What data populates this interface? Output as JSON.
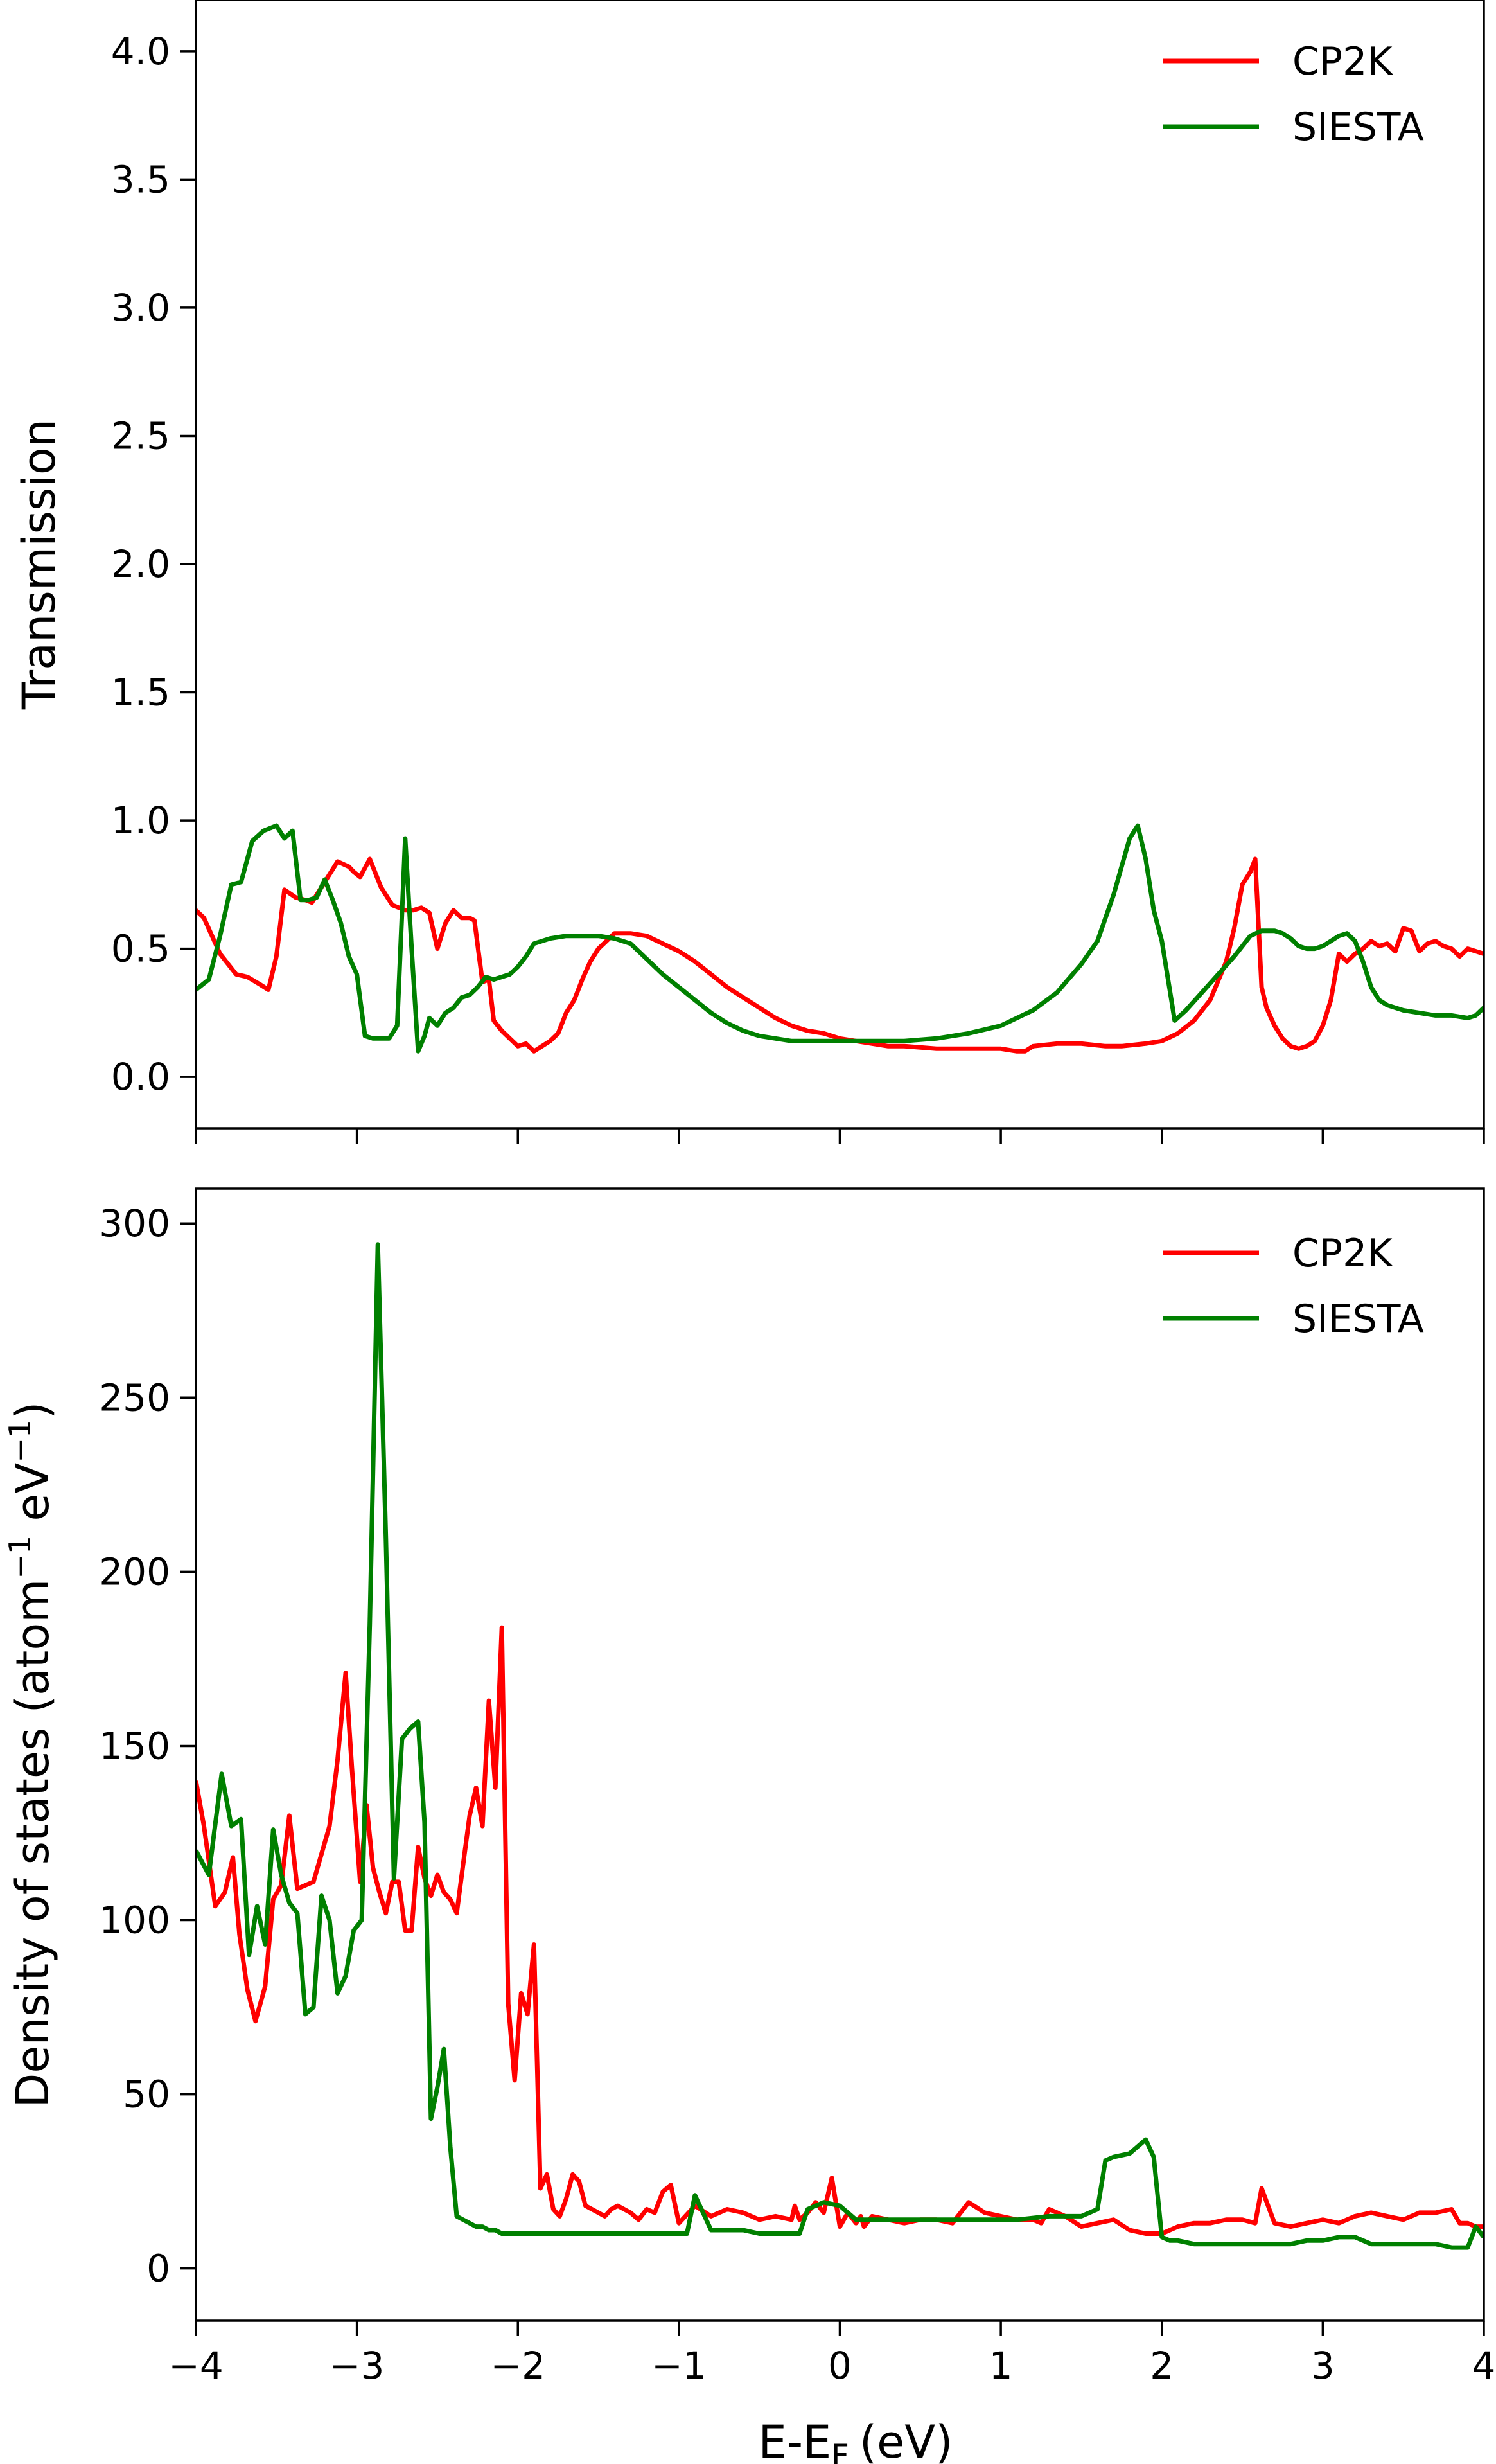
{
  "xlabel": "E-E",
  "xlabel_sub": "F",
  "xlabel_unit": "(eV)",
  "colors": {
    "CP2K": "#ff0000",
    "SIESTA": "#008000"
  },
  "chart_data": [
    {
      "type": "line",
      "ylabel": "Transmission",
      "xlim": [
        -4,
        4
      ],
      "ylim": [
        -0.2,
        4.2
      ],
      "xticks": [
        -4,
        -3,
        -2,
        -1,
        0,
        1,
        2,
        3,
        4
      ],
      "yticks": [
        0.0,
        0.5,
        1.0,
        1.5,
        2.0,
        2.5,
        3.0,
        3.5,
        4.0
      ],
      "ytick_labels": [
        "0.0",
        "0.5",
        "1.0",
        "1.5",
        "2.0",
        "2.5",
        "3.0",
        "3.5",
        "4.0"
      ],
      "legend": [
        "CP2K",
        "SIESTA"
      ],
      "legend_position": "top-right",
      "series": [
        {
          "name": "CP2K",
          "x": [
            -4.0,
            -3.95,
            -3.85,
            -3.75,
            -3.68,
            -3.6,
            -3.55,
            -3.5,
            -3.45,
            -3.38,
            -3.32,
            -3.28,
            -3.22,
            -3.18,
            -3.12,
            -3.05,
            -3.02,
            -2.98,
            -2.92,
            -2.85,
            -2.78,
            -2.7,
            -2.65,
            -2.6,
            -2.55,
            -2.5,
            -2.45,
            -2.4,
            -2.35,
            -2.3,
            -2.27,
            -2.22,
            -2.18,
            -2.15,
            -2.1,
            -2.05,
            -2.0,
            -1.95,
            -1.9,
            -1.85,
            -1.8,
            -1.75,
            -1.7,
            -1.65,
            -1.6,
            -1.55,
            -1.5,
            -1.45,
            -1.4,
            -1.35,
            -1.3,
            -1.25,
            -1.2,
            -1.1,
            -1.0,
            -0.9,
            -0.8,
            -0.7,
            -0.6,
            -0.5,
            -0.4,
            -0.3,
            -0.2,
            -0.1,
            0.0,
            0.1,
            0.2,
            0.3,
            0.4,
            0.6,
            0.8,
            1.0,
            1.1,
            1.15,
            1.2,
            1.35,
            1.5,
            1.65,
            1.7,
            1.75,
            1.9,
            2.0,
            2.1,
            2.2,
            2.3,
            2.4,
            2.45,
            2.5,
            2.55,
            2.58,
            2.62,
            2.65,
            2.7,
            2.75,
            2.8,
            2.85,
            2.9,
            2.95,
            3.0,
            3.05,
            3.1,
            3.15,
            3.2,
            3.25,
            3.3,
            3.35,
            3.4,
            3.45,
            3.5,
            3.55,
            3.6,
            3.65,
            3.7,
            3.75,
            3.8,
            3.85,
            3.9,
            3.95,
            4.0
          ],
          "y": [
            0.65,
            0.62,
            0.48,
            0.4,
            0.39,
            0.36,
            0.34,
            0.47,
            0.73,
            0.7,
            0.69,
            0.68,
            0.74,
            0.78,
            0.84,
            0.82,
            0.8,
            0.78,
            0.85,
            0.74,
            0.67,
            0.65,
            0.65,
            0.66,
            0.64,
            0.5,
            0.6,
            0.65,
            0.62,
            0.62,
            0.61,
            0.37,
            0.38,
            0.22,
            0.18,
            0.15,
            0.12,
            0.13,
            0.1,
            0.12,
            0.14,
            0.17,
            0.25,
            0.3,
            0.38,
            0.45,
            0.5,
            0.53,
            0.56,
            0.56,
            0.56,
            0.555,
            0.55,
            0.52,
            0.49,
            0.45,
            0.4,
            0.35,
            0.31,
            0.27,
            0.23,
            0.2,
            0.18,
            0.17,
            0.15,
            0.14,
            0.13,
            0.12,
            0.12,
            0.11,
            0.11,
            0.11,
            0.1,
            0.1,
            0.12,
            0.13,
            0.13,
            0.12,
            0.12,
            0.12,
            0.13,
            0.14,
            0.17,
            0.22,
            0.3,
            0.45,
            0.58,
            0.75,
            0.8,
            0.85,
            0.35,
            0.27,
            0.2,
            0.15,
            0.12,
            0.11,
            0.12,
            0.14,
            0.2,
            0.3,
            0.48,
            0.45,
            0.48,
            0.5,
            0.53,
            0.51,
            0.52,
            0.49,
            0.58,
            0.57,
            0.49,
            0.52,
            0.53,
            0.51,
            0.5,
            0.47,
            0.5,
            0.49,
            0.48
          ]
        },
        {
          "name": "SIESTA",
          "x": [
            -4.0,
            -3.92,
            -3.85,
            -3.78,
            -3.72,
            -3.65,
            -3.58,
            -3.5,
            -3.45,
            -3.4,
            -3.35,
            -3.3,
            -3.25,
            -3.2,
            -3.15,
            -3.1,
            -3.05,
            -3.0,
            -2.95,
            -2.9,
            -2.85,
            -2.8,
            -2.75,
            -2.7,
            -2.66,
            -2.62,
            -2.58,
            -2.55,
            -2.5,
            -2.45,
            -2.4,
            -2.35,
            -2.3,
            -2.25,
            -2.2,
            -2.15,
            -2.1,
            -2.05,
            -2.0,
            -1.95,
            -1.9,
            -1.8,
            -1.7,
            -1.6,
            -1.5,
            -1.4,
            -1.3,
            -1.2,
            -1.1,
            -1.0,
            -0.9,
            -0.8,
            -0.7,
            -0.6,
            -0.5,
            -0.4,
            -0.3,
            -0.2,
            -0.1,
            0.0,
            0.2,
            0.4,
            0.6,
            0.8,
            1.0,
            1.2,
            1.35,
            1.5,
            1.6,
            1.7,
            1.8,
            1.85,
            1.9,
            1.95,
            2.0,
            2.08,
            2.15,
            2.25,
            2.35,
            2.45,
            2.55,
            2.62,
            2.7,
            2.75,
            2.8,
            2.85,
            2.9,
            2.95,
            3.0,
            3.05,
            3.1,
            3.15,
            3.2,
            3.25,
            3.3,
            3.35,
            3.4,
            3.45,
            3.5,
            3.6,
            3.7,
            3.8,
            3.9,
            3.95,
            4.0
          ],
          "y": [
            0.34,
            0.38,
            0.55,
            0.75,
            0.76,
            0.92,
            0.96,
            0.98,
            0.93,
            0.96,
            0.69,
            0.69,
            0.7,
            0.77,
            0.69,
            0.6,
            0.47,
            0.4,
            0.16,
            0.15,
            0.15,
            0.15,
            0.2,
            0.93,
            0.5,
            0.1,
            0.16,
            0.23,
            0.2,
            0.25,
            0.27,
            0.31,
            0.32,
            0.35,
            0.39,
            0.38,
            0.39,
            0.4,
            0.43,
            0.47,
            0.52,
            0.54,
            0.55,
            0.55,
            0.55,
            0.54,
            0.52,
            0.46,
            0.4,
            0.35,
            0.3,
            0.25,
            0.21,
            0.18,
            0.16,
            0.15,
            0.14,
            0.14,
            0.14,
            0.14,
            0.14,
            0.14,
            0.15,
            0.17,
            0.2,
            0.26,
            0.33,
            0.44,
            0.53,
            0.71,
            0.93,
            0.98,
            0.85,
            0.65,
            0.53,
            0.22,
            0.26,
            0.33,
            0.4,
            0.47,
            0.55,
            0.57,
            0.57,
            0.56,
            0.54,
            0.51,
            0.5,
            0.5,
            0.51,
            0.53,
            0.55,
            0.56,
            0.53,
            0.45,
            0.35,
            0.3,
            0.28,
            0.27,
            0.26,
            0.25,
            0.24,
            0.24,
            0.23,
            0.24,
            0.27
          ]
        }
      ]
    },
    {
      "type": "line",
      "ylabel": "Density of states (atom",
      "ylabel_sup": "−1",
      "ylabel_mid": " eV",
      "ylabel_sup2": "−1",
      "ylabel_end": ")",
      "xlim": [
        -4,
        4
      ],
      "ylim": [
        -15,
        310
      ],
      "xticks": [
        -4,
        -3,
        -2,
        -1,
        0,
        1,
        2,
        3,
        4
      ],
      "xtick_labels": [
        "−4",
        "−3",
        "−2",
        "−1",
        "0",
        "1",
        "2",
        "3",
        "4"
      ],
      "yticks": [
        0,
        50,
        100,
        150,
        200,
        250,
        300
      ],
      "ytick_labels": [
        "0",
        "50",
        "100",
        "150",
        "200",
        "250",
        "300"
      ],
      "legend": [
        "CP2K",
        "SIESTA"
      ],
      "legend_position": "top-right",
      "series": [
        {
          "name": "CP2K",
          "x": [
            -4.0,
            -3.95,
            -3.88,
            -3.82,
            -3.77,
            -3.73,
            -3.68,
            -3.63,
            -3.57,
            -3.52,
            -3.47,
            -3.42,
            -3.37,
            -3.32,
            -3.27,
            -3.22,
            -3.17,
            -3.12,
            -3.07,
            -3.03,
            -2.98,
            -2.94,
            -2.9,
            -2.86,
            -2.82,
            -2.78,
            -2.74,
            -2.7,
            -2.66,
            -2.62,
            -2.58,
            -2.54,
            -2.5,
            -2.46,
            -2.42,
            -2.38,
            -2.34,
            -2.3,
            -2.26,
            -2.22,
            -2.18,
            -2.14,
            -2.1,
            -2.06,
            -2.02,
            -1.98,
            -1.94,
            -1.9,
            -1.86,
            -1.82,
            -1.78,
            -1.74,
            -1.7,
            -1.66,
            -1.62,
            -1.58,
            -1.54,
            -1.5,
            -1.46,
            -1.42,
            -1.38,
            -1.3,
            -1.25,
            -1.2,
            -1.15,
            -1.1,
            -1.05,
            -1.0,
            -0.9,
            -0.8,
            -0.7,
            -0.6,
            -0.5,
            -0.4,
            -0.3,
            -0.28,
            -0.25,
            -0.2,
            -0.15,
            -0.1,
            -0.05,
            0.0,
            0.05,
            0.1,
            0.13,
            0.15,
            0.2,
            0.3,
            0.4,
            0.5,
            0.6,
            0.7,
            0.8,
            0.9,
            1.0,
            1.1,
            1.2,
            1.25,
            1.3,
            1.4,
            1.5,
            1.6,
            1.7,
            1.8,
            1.9,
            2.0,
            2.1,
            2.2,
            2.3,
            2.4,
            2.5,
            2.58,
            2.62,
            2.7,
            2.8,
            2.9,
            3.0,
            3.1,
            3.2,
            3.3,
            3.4,
            3.5,
            3.6,
            3.7,
            3.8,
            3.85,
            3.9,
            3.95,
            4.0
          ],
          "y": [
            140,
            127,
            104,
            108,
            118,
            96,
            80,
            71,
            81,
            106,
            110,
            130,
            109,
            110,
            111,
            119,
            127,
            146,
            171,
            143,
            111,
            133,
            115,
            108,
            102,
            111,
            111,
            97,
            97,
            121,
            112,
            107,
            113,
            108,
            106,
            102,
            116,
            130,
            138,
            127,
            163,
            138,
            184,
            76,
            54,
            79,
            73,
            93,
            23,
            27,
            17,
            15,
            20,
            27,
            25,
            18,
            17,
            16,
            15,
            17,
            18,
            16,
            14,
            17,
            16,
            22,
            24,
            13,
            18,
            15,
            17,
            16,
            14,
            15,
            14,
            18,
            14,
            16,
            19,
            16,
            26,
            12,
            16,
            13,
            15,
            12,
            15,
            14,
            13,
            14,
            14,
            13,
            19,
            16,
            15,
            14,
            14,
            13,
            17,
            15,
            12,
            13,
            14,
            11,
            10,
            10,
            12,
            13,
            13,
            14,
            14,
            13,
            23,
            13,
            12,
            13,
            14,
            13,
            15,
            16,
            15,
            14,
            16,
            16,
            17,
            13,
            13,
            12,
            12
          ],
          "note_unused": ""
        },
        {
          "name": "SIESTA",
          "x": [
            -4.0,
            -3.92,
            -3.84,
            -3.78,
            -3.72,
            -3.67,
            -3.62,
            -3.57,
            -3.52,
            -3.47,
            -3.42,
            -3.37,
            -3.32,
            -3.27,
            -3.22,
            -3.17,
            -3.12,
            -3.07,
            -3.02,
            -2.97,
            -2.92,
            -2.87,
            -2.82,
            -2.77,
            -2.72,
            -2.67,
            -2.62,
            -2.58,
            -2.54,
            -2.5,
            -2.46,
            -2.42,
            -2.38,
            -2.34,
            -2.3,
            -2.26,
            -2.22,
            -2.18,
            -2.14,
            -2.1,
            -2.05,
            -2.0,
            -1.5,
            -1.0,
            -0.95,
            -0.9,
            -0.85,
            -0.8,
            -0.75,
            -0.7,
            -0.6,
            -0.5,
            -0.4,
            -0.3,
            -0.25,
            -0.2,
            -0.1,
            0.0,
            0.1,
            0.2,
            0.3,
            0.5,
            0.7,
            0.9,
            1.1,
            1.3,
            1.5,
            1.6,
            1.65,
            1.7,
            1.8,
            1.85,
            1.9,
            1.95,
            2.0,
            2.05,
            2.1,
            2.2,
            2.3,
            2.4,
            2.5,
            2.6,
            2.7,
            2.8,
            2.9,
            3.0,
            3.1,
            3.2,
            3.3,
            3.35,
            3.4,
            3.5,
            3.6,
            3.7,
            3.8,
            3.9,
            3.95,
            4.0
          ],
          "y": [
            120,
            113,
            142,
            127,
            129,
            90,
            104,
            93,
            126,
            113,
            105,
            102,
            73,
            75,
            107,
            100,
            79,
            84,
            97,
            100,
            185,
            294,
            210,
            112,
            152,
            155,
            157,
            128,
            43,
            52,
            63,
            35,
            15,
            14,
            13,
            12,
            12,
            11,
            11,
            10,
            10,
            10,
            10,
            10,
            10,
            21,
            16,
            11,
            11,
            11,
            11,
            10,
            10,
            10,
            10,
            17,
            19,
            18,
            14,
            14,
            14,
            14,
            14,
            14,
            14,
            15,
            15,
            17,
            31,
            32,
            33,
            35,
            37,
            32,
            9,
            8,
            8,
            7,
            7,
            7,
            7,
            7,
            7,
            7,
            8,
            8,
            9,
            9,
            7,
            7,
            7,
            7,
            7,
            7,
            6,
            6,
            12,
            9
          ],
          "note_unused": ""
        }
      ]
    }
  ]
}
